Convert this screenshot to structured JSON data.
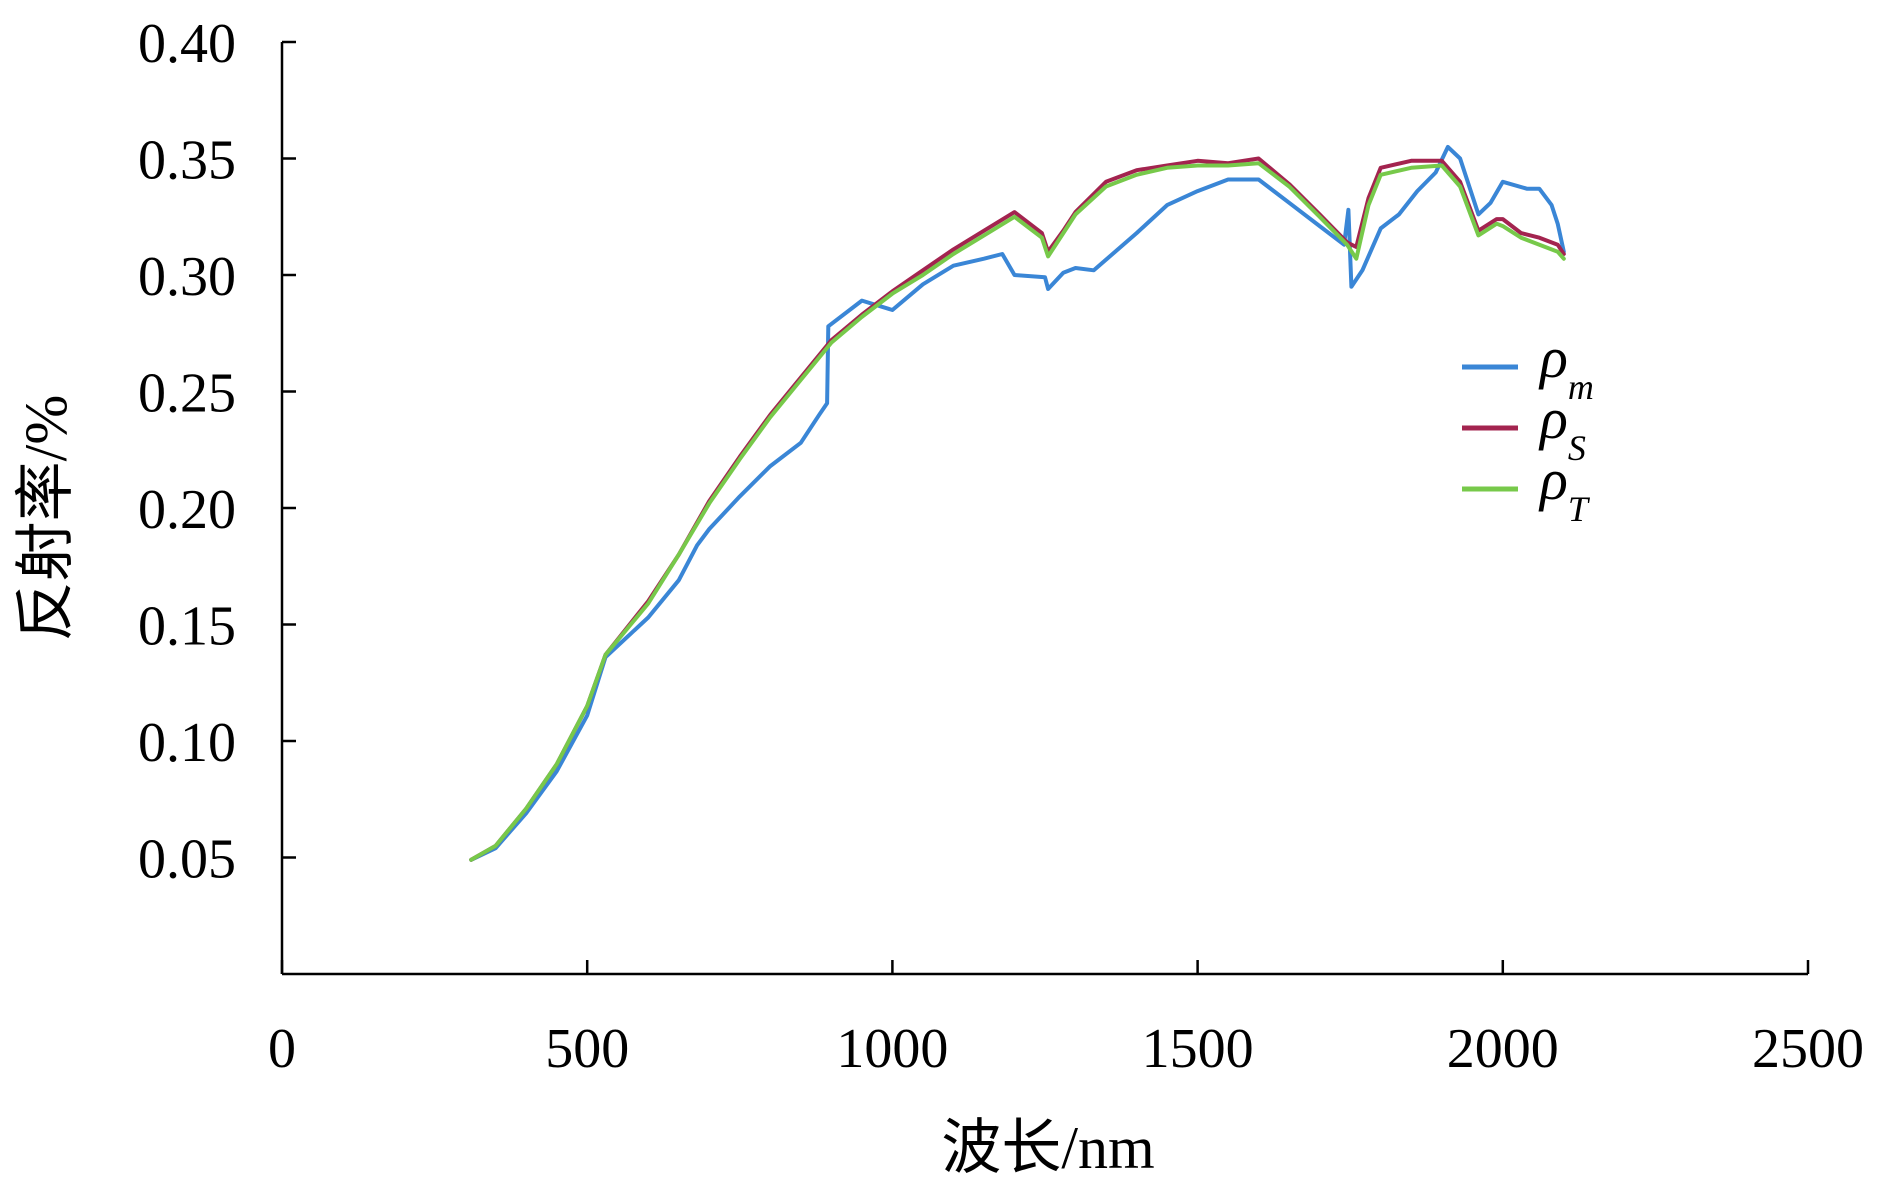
{
  "chart_data": {
    "type": "line",
    "title": "",
    "xlabel": "波长/nm",
    "ylabel": "反射率/%",
    "xlim": [
      0,
      2500
    ],
    "ylim": [
      0.0,
      0.4
    ],
    "x_ticks": [
      0,
      500,
      1000,
      1500,
      2000,
      2500
    ],
    "x_tick_labels": [
      "0",
      "500",
      "1000",
      "1500",
      "2000",
      "2500"
    ],
    "y_ticks": [
      0.05,
      0.1,
      0.15,
      0.2,
      0.25,
      0.3,
      0.35,
      0.4
    ],
    "y_tick_labels": [
      "0.05",
      "0.10",
      "0.15",
      "0.20",
      "0.25",
      "0.30",
      "0.35",
      "0.40"
    ],
    "grid": false,
    "legend_position": "right",
    "series": [
      {
        "name": "ρm",
        "legend_main": "ρ",
        "legend_sub": "m",
        "color": "#3a86d6",
        "points": [
          [
            310,
            0.049
          ],
          [
            350,
            0.054
          ],
          [
            400,
            0.069
          ],
          [
            450,
            0.087
          ],
          [
            500,
            0.111
          ],
          [
            530,
            0.136
          ],
          [
            600,
            0.153
          ],
          [
            650,
            0.169
          ],
          [
            680,
            0.184
          ],
          [
            700,
            0.191
          ],
          [
            750,
            0.205
          ],
          [
            800,
            0.218
          ],
          [
            850,
            0.228
          ],
          [
            880,
            0.24
          ],
          [
            893,
            0.245
          ],
          [
            895,
            0.278
          ],
          [
            950,
            0.289
          ],
          [
            1000,
            0.285
          ],
          [
            1050,
            0.296
          ],
          [
            1100,
            0.304
          ],
          [
            1150,
            0.307
          ],
          [
            1180,
            0.309
          ],
          [
            1200,
            0.3
          ],
          [
            1250,
            0.299
          ],
          [
            1255,
            0.294
          ],
          [
            1280,
            0.301
          ],
          [
            1300,
            0.303
          ],
          [
            1330,
            0.302
          ],
          [
            1400,
            0.318
          ],
          [
            1450,
            0.33
          ],
          [
            1500,
            0.336
          ],
          [
            1550,
            0.341
          ],
          [
            1600,
            0.341
          ],
          [
            1650,
            0.331
          ],
          [
            1700,
            0.321
          ],
          [
            1740,
            0.313
          ],
          [
            1747,
            0.328
          ],
          [
            1752,
            0.295
          ],
          [
            1770,
            0.302
          ],
          [
            1800,
            0.32
          ],
          [
            1830,
            0.326
          ],
          [
            1860,
            0.336
          ],
          [
            1890,
            0.344
          ],
          [
            1910,
            0.355
          ],
          [
            1930,
            0.35
          ],
          [
            1960,
            0.326
          ],
          [
            1980,
            0.331
          ],
          [
            2000,
            0.34
          ],
          [
            2040,
            0.337
          ],
          [
            2060,
            0.337
          ],
          [
            2080,
            0.33
          ],
          [
            2090,
            0.322
          ],
          [
            2100,
            0.31
          ]
        ]
      },
      {
        "name": "ρS",
        "legend_main": "ρ",
        "legend_sub": "S",
        "color": "#a3244f",
        "points": [
          [
            310,
            0.049
          ],
          [
            350,
            0.055
          ],
          [
            400,
            0.071
          ],
          [
            450,
            0.09
          ],
          [
            500,
            0.115
          ],
          [
            530,
            0.137
          ],
          [
            600,
            0.16
          ],
          [
            650,
            0.18
          ],
          [
            700,
            0.203
          ],
          [
            750,
            0.222
          ],
          [
            800,
            0.24
          ],
          [
            850,
            0.256
          ],
          [
            900,
            0.272
          ],
          [
            950,
            0.283
          ],
          [
            1000,
            0.293
          ],
          [
            1050,
            0.302
          ],
          [
            1100,
            0.311
          ],
          [
            1150,
            0.319
          ],
          [
            1200,
            0.327
          ],
          [
            1245,
            0.318
          ],
          [
            1255,
            0.31
          ],
          [
            1280,
            0.319
          ],
          [
            1300,
            0.327
          ],
          [
            1350,
            0.34
          ],
          [
            1400,
            0.345
          ],
          [
            1450,
            0.347
          ],
          [
            1500,
            0.349
          ],
          [
            1550,
            0.348
          ],
          [
            1600,
            0.35
          ],
          [
            1650,
            0.339
          ],
          [
            1700,
            0.326
          ],
          [
            1745,
            0.314
          ],
          [
            1760,
            0.312
          ],
          [
            1780,
            0.333
          ],
          [
            1800,
            0.346
          ],
          [
            1850,
            0.349
          ],
          [
            1900,
            0.349
          ],
          [
            1930,
            0.34
          ],
          [
            1960,
            0.319
          ],
          [
            1990,
            0.324
          ],
          [
            2000,
            0.324
          ],
          [
            2030,
            0.318
          ],
          [
            2060,
            0.316
          ],
          [
            2090,
            0.313
          ],
          [
            2100,
            0.309
          ]
        ]
      },
      {
        "name": "ρT",
        "legend_main": "ρ",
        "legend_sub": "T",
        "color": "#77c94a",
        "points": [
          [
            310,
            0.049
          ],
          [
            350,
            0.055
          ],
          [
            400,
            0.071
          ],
          [
            450,
            0.09
          ],
          [
            500,
            0.115
          ],
          [
            530,
            0.137
          ],
          [
            600,
            0.159
          ],
          [
            650,
            0.18
          ],
          [
            700,
            0.202
          ],
          [
            750,
            0.221
          ],
          [
            800,
            0.239
          ],
          [
            850,
            0.255
          ],
          [
            900,
            0.271
          ],
          [
            950,
            0.282
          ],
          [
            1000,
            0.292
          ],
          [
            1050,
            0.3
          ],
          [
            1100,
            0.309
          ],
          [
            1150,
            0.317
          ],
          [
            1200,
            0.325
          ],
          [
            1245,
            0.316
          ],
          [
            1255,
            0.308
          ],
          [
            1280,
            0.318
          ],
          [
            1300,
            0.326
          ],
          [
            1350,
            0.338
          ],
          [
            1400,
            0.343
          ],
          [
            1450,
            0.346
          ],
          [
            1500,
            0.347
          ],
          [
            1550,
            0.347
          ],
          [
            1600,
            0.348
          ],
          [
            1650,
            0.338
          ],
          [
            1700,
            0.325
          ],
          [
            1745,
            0.313
          ],
          [
            1760,
            0.307
          ],
          [
            1780,
            0.33
          ],
          [
            1800,
            0.343
          ],
          [
            1850,
            0.346
          ],
          [
            1900,
            0.347
          ],
          [
            1930,
            0.338
          ],
          [
            1960,
            0.317
          ],
          [
            1990,
            0.322
          ],
          [
            2000,
            0.321
          ],
          [
            2030,
            0.316
          ],
          [
            2060,
            0.313
          ],
          [
            2090,
            0.31
          ],
          [
            2100,
            0.307
          ]
        ]
      }
    ]
  }
}
